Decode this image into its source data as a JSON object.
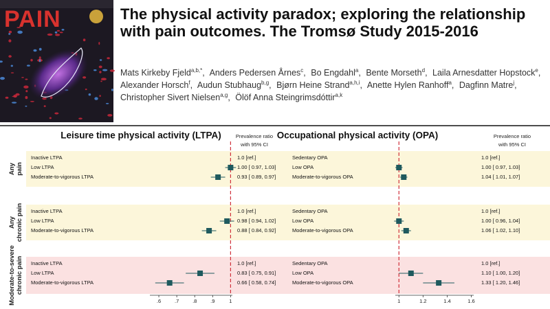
{
  "cover": {
    "title": "PAIN"
  },
  "header": {
    "title": "The physical activity paradox; exploring the relationship with pain outcomes. The Tromsø Study 2015-2016",
    "authors": [
      {
        "name": "Mats Kirkeby Fjeld",
        "sup": "a,b,*",
        "sep": ","
      },
      {
        "name": "Anders Pedersen Årnes",
        "sup": "c",
        "sep": ","
      },
      {
        "name": "Bo Engdahl",
        "sup": "a",
        "sep": ","
      },
      {
        "name": "Bente Morseth",
        "sup": "d",
        "sep": ","
      },
      {
        "name": "Laila Arnesdatter Hopstock",
        "sup": "e",
        "sep": ","
      },
      {
        "name": "Alexander Horsch",
        "sup": "f",
        "sep": ","
      },
      {
        "name": "Audun Stubhaug",
        "sup": "b,g",
        "sep": ","
      },
      {
        "name": "Bjørn Heine Strand",
        "sup": "a,h,i",
        "sep": ","
      },
      {
        "name": "Anette Hylen Ranhoff",
        "sup": "a",
        "sep": ","
      },
      {
        "name": "Dagfinn Matre",
        "sup": "j",
        "sep": ","
      },
      {
        "name": "Christopher Sivert Nielsen",
        "sup": "a,g",
        "sep": ","
      },
      {
        "name": "Ölöf Anna Steingrimsdóttir",
        "sup": "a,k"
      }
    ]
  },
  "figure": {
    "group_labels": [
      [
        "Any",
        "pain"
      ],
      [
        "Any",
        "chronic pain"
      ],
      [
        "Moderate-to-severe",
        "chronic pain"
      ]
    ],
    "panels": [
      {
        "title": "Leisure time physical activity (LTPA)",
        "ci_header": [
          "Prevalence ratio",
          "with 95% CI"
        ],
        "xlim": [
          0.55,
          1.01
        ],
        "xticks": [
          {
            "value": 0.6,
            "label": ".6"
          },
          {
            "value": 0.7,
            "label": ".7"
          },
          {
            "value": 0.8,
            "label": ".8"
          },
          {
            "value": 0.9,
            "label": ".9"
          },
          1
        ],
        "ref_line": 1,
        "groups": [
          {
            "rows": [
              {
                "label": "Inactive LTPA",
                "text": "1.0 [ref.]"
              },
              {
                "label": "Low LTPA",
                "text": "1.00 [ 0.97, 1.03]",
                "est": 1.0,
                "ci": [
                  0.97,
                  1.03
                ]
              },
              {
                "label": "Moderate-to-vigorous LTPA",
                "text": "0.93 [ 0.89, 0.97]",
                "est": 0.93,
                "ci": [
                  0.89,
                  0.97
                ]
              }
            ]
          },
          {
            "rows": [
              {
                "label": "Inactive LTPA",
                "text": "1.0 [ref.]"
              },
              {
                "label": "Low LTPA",
                "text": "0.98 [ 0.94, 1.02]",
                "est": 0.98,
                "ci": [
                  0.94,
                  1.02
                ]
              },
              {
                "label": "Moderate-to-vigorous LTPA",
                "text": "0.88 [ 0.84, 0.92]",
                "est": 0.88,
                "ci": [
                  0.84,
                  0.92
                ]
              }
            ]
          },
          {
            "rows": [
              {
                "label": "Inactive LTPA",
                "text": "1.0 [ref.]"
              },
              {
                "label": "Low LTPA",
                "text": "0.83 [ 0.75, 0.91]",
                "est": 0.83,
                "ci": [
                  0.75,
                  0.91
                ]
              },
              {
                "label": "Moderate-to-vigorous LTPA",
                "text": "0.66 [ 0.58, 0.74]",
                "est": 0.66,
                "ci": [
                  0.58,
                  0.74
                ]
              }
            ]
          }
        ]
      },
      {
        "title": "Occupational physical activity (OPA)",
        "ci_header": [
          "Prevalence ratio",
          "with 95% CI"
        ],
        "xlim": [
          0.97,
          1.62
        ],
        "xticks": [
          1,
          1.2,
          1.4,
          1.6
        ],
        "ref_line": 1,
        "groups": [
          {
            "rows": [
              {
                "label": "Sedentary OPA",
                "text": "1.0 [ref.]"
              },
              {
                "label": "Low OPA",
                "text": "1.00 [ 0.97, 1.03]",
                "est": 1.0,
                "ci": [
                  0.97,
                  1.03
                ]
              },
              {
                "label": "Moderate-to-vigorous OPA",
                "text": "1.04 [ 1.01, 1.07]",
                "est": 1.04,
                "ci": [
                  1.01,
                  1.07
                ]
              }
            ]
          },
          {
            "rows": [
              {
                "label": "Sedentary OPA",
                "text": "1.0 [ref.]"
              },
              {
                "label": "Low OPA",
                "text": "1.00 [ 0.96, 1.04]",
                "est": 1.0,
                "ci": [
                  0.96,
                  1.04
                ]
              },
              {
                "label": "Moderate-to-vigorous OPA",
                "text": "1.06 [ 1.02, 1.10]",
                "est": 1.06,
                "ci": [
                  1.02,
                  1.1
                ]
              }
            ]
          },
          {
            "rows": [
              {
                "label": "Sedentary OPA",
                "text": "1.0 [ref.]"
              },
              {
                "label": "Low OPA",
                "text": "1.10 [ 1.00, 1.20]",
                "est": 1.1,
                "ci": [
                  1.0,
                  1.2
                ]
              },
              {
                "label": "Moderate-to-vigorous OPA",
                "text": "1.33 [ 1.20, 1.46]",
                "est": 1.33,
                "ci": [
                  1.2,
                  1.46
                ]
              }
            ]
          }
        ]
      }
    ]
  }
}
